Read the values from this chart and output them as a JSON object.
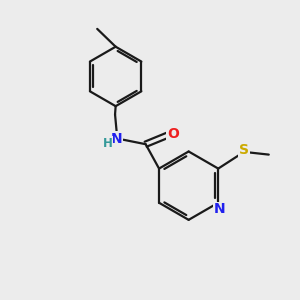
{
  "background_color": "#ececec",
  "bond_color": "#1a1a1a",
  "N_color": "#2020ee",
  "O_color": "#ee2020",
  "S_color": "#ccaa00",
  "H_color": "#339999",
  "figsize": [
    3.0,
    3.0
  ],
  "dpi": 100,
  "xlim": [
    0,
    10
  ],
  "ylim": [
    0,
    10
  ]
}
